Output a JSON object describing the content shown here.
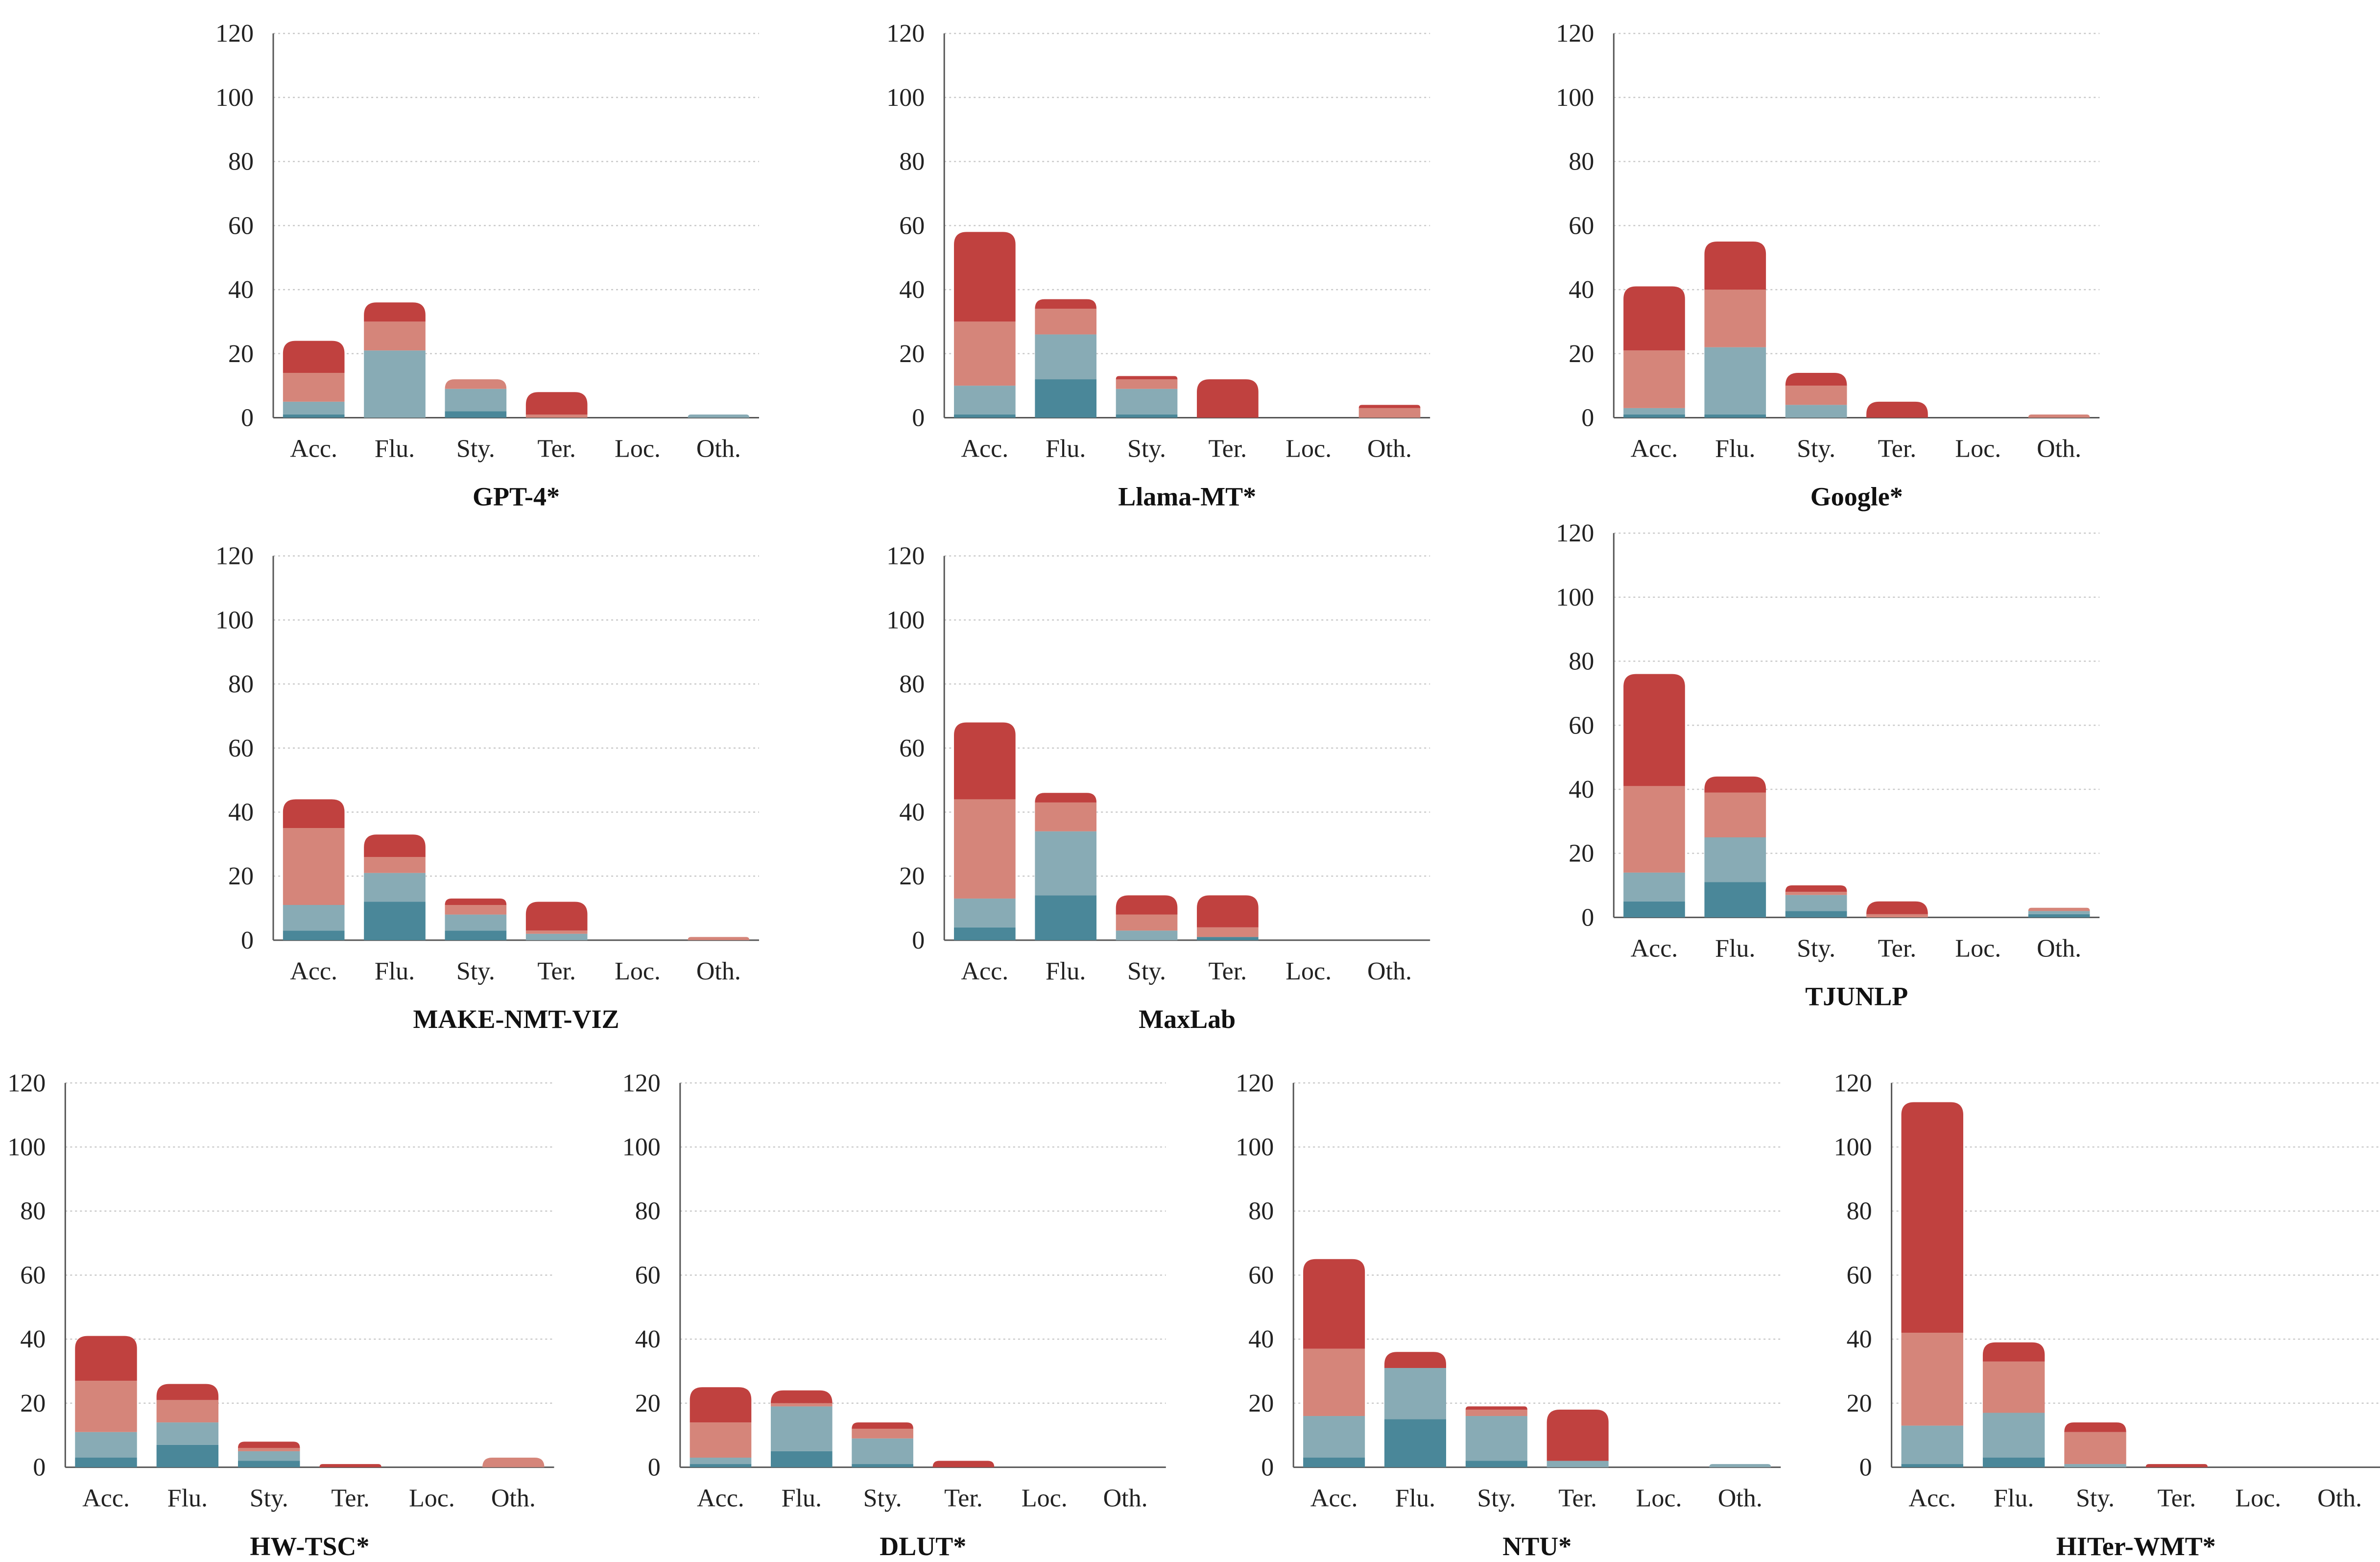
{
  "colors": {
    "minor_fluency": "#4a8799",
    "neutral_fluency": "#88abb5",
    "minor_accuracy": "#d5857a",
    "major": "#c0413f"
  },
  "series_names": [
    "s1",
    "s2",
    "s3",
    "s4"
  ],
  "chart_data": [
    {
      "type": "bar",
      "stacked": true,
      "title": "GPT-4*",
      "categories": [
        "Acc.",
        "Flu.",
        "Sty.",
        "Ter.",
        "Loc.",
        "Oth."
      ],
      "ylim": [
        0,
        120
      ],
      "yticks": [
        0,
        20,
        40,
        60,
        80,
        100,
        120
      ],
      "series": [
        {
          "name": "s1",
          "values": [
            1,
            0,
            2,
            0,
            0,
            0
          ]
        },
        {
          "name": "s2",
          "values": [
            4,
            21,
            7,
            0,
            0,
            1
          ]
        },
        {
          "name": "s3",
          "values": [
            9,
            9,
            3,
            1,
            0,
            0
          ]
        },
        {
          "name": "s4",
          "values": [
            10,
            6,
            0,
            7,
            0,
            0
          ]
        }
      ]
    },
    {
      "type": "bar",
      "stacked": true,
      "title": "Llama-MT*",
      "categories": [
        "Acc.",
        "Flu.",
        "Sty.",
        "Ter.",
        "Loc.",
        "Oth."
      ],
      "ylim": [
        0,
        120
      ],
      "yticks": [
        0,
        20,
        40,
        60,
        80,
        100,
        120
      ],
      "series": [
        {
          "name": "s1",
          "values": [
            1,
            12,
            1,
            0,
            0,
            0
          ]
        },
        {
          "name": "s2",
          "values": [
            9,
            14,
            8,
            0,
            0,
            0
          ]
        },
        {
          "name": "s3",
          "values": [
            20,
            8,
            3,
            0,
            0,
            3
          ]
        },
        {
          "name": "s4",
          "values": [
            28,
            3,
            1,
            12,
            0,
            1
          ]
        }
      ]
    },
    {
      "type": "bar",
      "stacked": true,
      "title": "Google*",
      "categories": [
        "Acc.",
        "Flu.",
        "Sty.",
        "Ter.",
        "Loc.",
        "Oth."
      ],
      "ylim": [
        0,
        120
      ],
      "yticks": [
        0,
        20,
        40,
        60,
        80,
        100,
        120
      ],
      "series": [
        {
          "name": "s1",
          "values": [
            1,
            1,
            0,
            0,
            0,
            0
          ]
        },
        {
          "name": "s2",
          "values": [
            2,
            21,
            4,
            0,
            0,
            0
          ]
        },
        {
          "name": "s3",
          "values": [
            18,
            18,
            6,
            0,
            0,
            1
          ]
        },
        {
          "name": "s4",
          "values": [
            20,
            15,
            4,
            5,
            0,
            0
          ]
        }
      ]
    },
    {
      "type": "bar",
      "stacked": true,
      "title": "MAKE-NMT-VIZ",
      "categories": [
        "Acc.",
        "Flu.",
        "Sty.",
        "Ter.",
        "Loc.",
        "Oth."
      ],
      "ylim": [
        0,
        120
      ],
      "yticks": [
        0,
        20,
        40,
        60,
        80,
        100,
        120
      ],
      "series": [
        {
          "name": "s1",
          "values": [
            3,
            12,
            3,
            0,
            0,
            0
          ]
        },
        {
          "name": "s2",
          "values": [
            8,
            9,
            5,
            2,
            0,
            0
          ]
        },
        {
          "name": "s3",
          "values": [
            24,
            5,
            3,
            1,
            0,
            1
          ]
        },
        {
          "name": "s4",
          "values": [
            9,
            7,
            2,
            9,
            0,
            0
          ]
        }
      ]
    },
    {
      "type": "bar",
      "stacked": true,
      "title": "MaxLab",
      "categories": [
        "Acc.",
        "Flu.",
        "Sty.",
        "Ter.",
        "Loc.",
        "Oth."
      ],
      "ylim": [
        0,
        120
      ],
      "yticks": [
        0,
        20,
        40,
        60,
        80,
        100,
        120
      ],
      "series": [
        {
          "name": "s1",
          "values": [
            4,
            14,
            0,
            1,
            0,
            0
          ]
        },
        {
          "name": "s2",
          "values": [
            9,
            20,
            3,
            0,
            0,
            0
          ]
        },
        {
          "name": "s3",
          "values": [
            31,
            9,
            5,
            3,
            0,
            0
          ]
        },
        {
          "name": "s4",
          "values": [
            24,
            3,
            6,
            10,
            0,
            0
          ]
        }
      ]
    },
    {
      "type": "bar",
      "stacked": true,
      "title": "TJUNLP",
      "categories": [
        "Acc.",
        "Flu.",
        "Sty.",
        "Ter.",
        "Loc.",
        "Oth."
      ],
      "ylim": [
        0,
        120
      ],
      "yticks": [
        0,
        20,
        40,
        60,
        80,
        100,
        120
      ],
      "series": [
        {
          "name": "s1",
          "values": [
            5,
            11,
            2,
            0,
            0,
            1
          ]
        },
        {
          "name": "s2",
          "values": [
            9,
            14,
            5,
            0,
            0,
            1
          ]
        },
        {
          "name": "s3",
          "values": [
            27,
            14,
            1,
            1,
            0,
            1
          ]
        },
        {
          "name": "s4",
          "values": [
            35,
            5,
            2,
            4,
            0,
            0
          ]
        }
      ]
    },
    {
      "type": "bar",
      "stacked": true,
      "title": "HW-TSC*",
      "categories": [
        "Acc.",
        "Flu.",
        "Sty.",
        "Ter.",
        "Loc.",
        "Oth."
      ],
      "ylim": [
        0,
        120
      ],
      "yticks": [
        0,
        20,
        40,
        60,
        80,
        100,
        120
      ],
      "series": [
        {
          "name": "s1",
          "values": [
            3,
            7,
            2,
            0,
            0,
            0
          ]
        },
        {
          "name": "s2",
          "values": [
            8,
            7,
            3,
            0,
            0,
            0
          ]
        },
        {
          "name": "s3",
          "values": [
            16,
            7,
            1,
            0,
            0,
            3
          ]
        },
        {
          "name": "s4",
          "values": [
            14,
            5,
            2,
            1,
            0,
            0
          ]
        }
      ]
    },
    {
      "type": "bar",
      "stacked": true,
      "title": "DLUT*",
      "categories": [
        "Acc.",
        "Flu.",
        "Sty.",
        "Ter.",
        "Loc.",
        "Oth."
      ],
      "ylim": [
        0,
        120
      ],
      "yticks": [
        0,
        20,
        40,
        60,
        80,
        100,
        120
      ],
      "series": [
        {
          "name": "s1",
          "values": [
            1,
            5,
            1,
            0,
            0,
            0
          ]
        },
        {
          "name": "s2",
          "values": [
            2,
            14,
            8,
            0,
            0,
            0
          ]
        },
        {
          "name": "s3",
          "values": [
            11,
            1,
            3,
            0,
            0,
            0
          ]
        },
        {
          "name": "s4",
          "values": [
            11,
            4,
            2,
            2,
            0,
            0
          ]
        }
      ]
    },
    {
      "type": "bar",
      "stacked": true,
      "title": "NTU*",
      "categories": [
        "Acc.",
        "Flu.",
        "Sty.",
        "Ter.",
        "Loc.",
        "Oth."
      ],
      "ylim": [
        0,
        120
      ],
      "yticks": [
        0,
        20,
        40,
        60,
        80,
        100,
        120
      ],
      "series": [
        {
          "name": "s1",
          "values": [
            3,
            15,
            2,
            0,
            0,
            0
          ]
        },
        {
          "name": "s2",
          "values": [
            13,
            16,
            14,
            2,
            0,
            1
          ]
        },
        {
          "name": "s3",
          "values": [
            21,
            0,
            2,
            0,
            0,
            0
          ]
        },
        {
          "name": "s4",
          "values": [
            28,
            5,
            1,
            16,
            0,
            0
          ]
        }
      ]
    },
    {
      "type": "bar",
      "stacked": true,
      "title": "HITer-WMT*",
      "categories": [
        "Acc.",
        "Flu.",
        "Sty.",
        "Ter.",
        "Loc.",
        "Oth."
      ],
      "ylim": [
        0,
        120
      ],
      "yticks": [
        0,
        20,
        40,
        60,
        80,
        100,
        120
      ],
      "series": [
        {
          "name": "s1",
          "values": [
            1,
            3,
            0,
            0,
            0,
            0
          ]
        },
        {
          "name": "s2",
          "values": [
            12,
            14,
            1,
            0,
            0,
            0
          ]
        },
        {
          "name": "s3",
          "values": [
            29,
            16,
            10,
            0,
            0,
            0
          ]
        },
        {
          "name": "s4",
          "values": [
            72,
            6,
            3,
            1,
            0,
            0
          ]
        }
      ]
    }
  ]
}
